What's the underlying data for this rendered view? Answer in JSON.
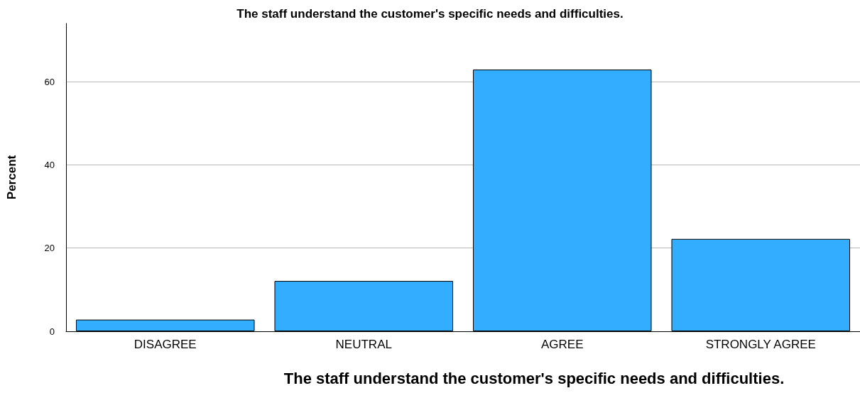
{
  "chart_data": {
    "type": "bar",
    "title": "The staff understand the customer's specific needs and difficulties.",
    "xlabel": "The staff understand the customer's specific needs and difficulties.",
    "ylabel": "Percent",
    "categories": [
      "DISAGREE",
      "NEUTRAL",
      "AGREE",
      "STRONGLY AGREE"
    ],
    "values": [
      2.8,
      12.1,
      62.9,
      22.2
    ],
    "color": "#33adff",
    "ylim": [
      0,
      74
    ],
    "yticks": [
      0,
      20,
      40,
      60
    ],
    "grid": "y"
  }
}
